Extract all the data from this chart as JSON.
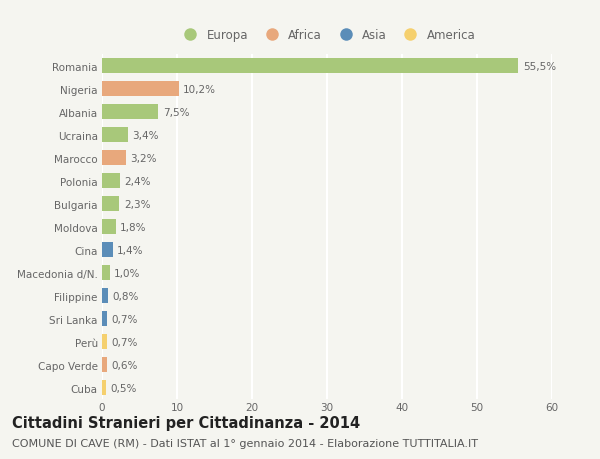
{
  "countries": [
    "Romania",
    "Nigeria",
    "Albania",
    "Ucraina",
    "Marocco",
    "Polonia",
    "Bulgaria",
    "Moldova",
    "Cina",
    "Macedonia d/N.",
    "Filippine",
    "Sri Lanka",
    "Perù",
    "Capo Verde",
    "Cuba"
  ],
  "values": [
    55.5,
    10.2,
    7.5,
    3.4,
    3.2,
    2.4,
    2.3,
    1.8,
    1.4,
    1.0,
    0.8,
    0.7,
    0.7,
    0.6,
    0.5
  ],
  "labels": [
    "55,5%",
    "10,2%",
    "7,5%",
    "3,4%",
    "3,2%",
    "2,4%",
    "2,3%",
    "1,8%",
    "1,4%",
    "1,0%",
    "0,8%",
    "0,7%",
    "0,7%",
    "0,6%",
    "0,5%"
  ],
  "continents": [
    "Europa",
    "Africa",
    "Europa",
    "Europa",
    "Africa",
    "Europa",
    "Europa",
    "Europa",
    "Asia",
    "Europa",
    "Asia",
    "Asia",
    "America",
    "Africa",
    "America"
  ],
  "continent_colors": {
    "Europa": "#a8c87a",
    "Africa": "#e8a87c",
    "Asia": "#5b8db8",
    "America": "#f5d06e"
  },
  "legend_order": [
    "Europa",
    "Africa",
    "Asia",
    "America"
  ],
  "xlim": [
    0,
    60
  ],
  "xticks": [
    0,
    10,
    20,
    30,
    40,
    50,
    60
  ],
  "title": "Cittadini Stranieri per Cittadinanza - 2014",
  "subtitle": "COMUNE DI CAVE (RM) - Dati ISTAT al 1° gennaio 2014 - Elaborazione TUTTITALIA.IT",
  "background_color": "#f5f5f0",
  "bar_height": 0.65,
  "title_fontsize": 10.5,
  "subtitle_fontsize": 8,
  "label_fontsize": 7.5,
  "tick_fontsize": 7.5,
  "legend_fontsize": 8.5
}
